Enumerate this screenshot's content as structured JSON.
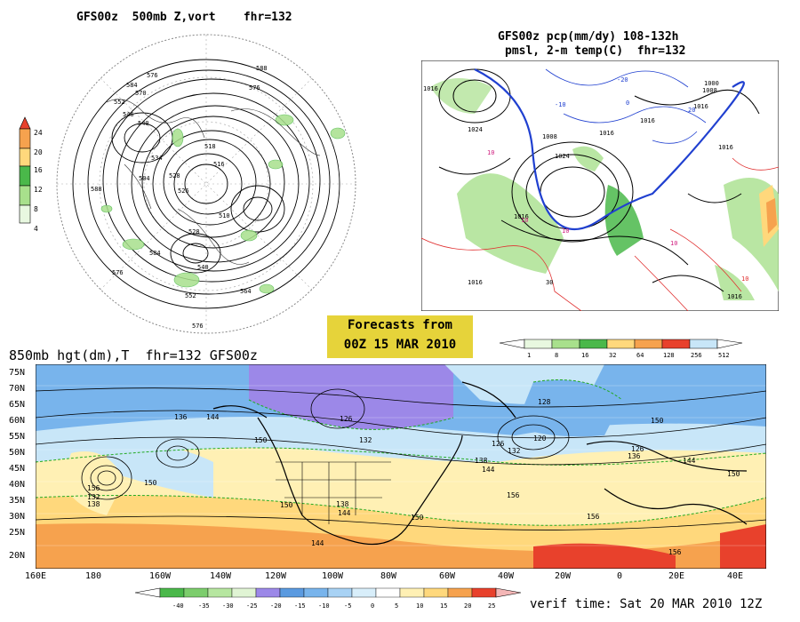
{
  "panel_500mb": {
    "title": "GFS00z  500mb Z,vort    fhr=132",
    "legend": [
      "24",
      "20",
      "16",
      "12",
      "8",
      "4"
    ],
    "contour_labels": [
      "576",
      "588",
      "584",
      "576",
      "570",
      "552",
      "540",
      "546",
      "518",
      "528",
      "534",
      "516",
      "526",
      "510",
      "504",
      "588",
      "584",
      "576",
      "528",
      "540",
      "552",
      "564",
      "576"
    ]
  },
  "panel_precip": {
    "title_line1": "GFS00z pcp(mm/dy) 108-132h",
    "title_line2": "pmsl, 2-m temp(C)  fhr=132",
    "legend": [
      "1",
      "8",
      "16",
      "32",
      "64",
      "128",
      "256",
      "512"
    ],
    "pressure_labels": [
      "1016",
      "1024",
      "1008",
      "1016",
      "1016",
      "1000",
      "1008",
      "1016",
      "1016",
      "1024",
      "1016",
      "1016",
      "1016"
    ],
    "temp_labels": [
      "10",
      "10",
      "10",
      "10",
      "20",
      "30",
      "0",
      "-10",
      "-20",
      "10"
    ]
  },
  "forecast_badge": {
    "line1": "Forecasts from",
    "line2": "00Z 15 MAR 2010"
  },
  "panel_850mb": {
    "title": "850mb hgt(dm),T  fhr=132 GFS00z",
    "lat_labels": [
      "75N",
      "70N",
      "65N",
      "60N",
      "55N",
      "50N",
      "45N",
      "40N",
      "35N",
      "30N",
      "25N",
      "20N"
    ],
    "lon_labels": [
      "160E",
      "180",
      "160W",
      "140W",
      "120W",
      "100W",
      "80W",
      "60W",
      "40W",
      "20W",
      "0",
      "20E",
      "40E"
    ],
    "height_labels": [
      "136",
      "144",
      "150",
      "126",
      "132",
      "128",
      "120",
      "126",
      "132",
      "138",
      "144",
      "150",
      "156",
      "150",
      "138",
      "144",
      "150",
      "156",
      "132",
      "138",
      "144",
      "150",
      "126",
      "136",
      "144",
      "150",
      "156",
      "156",
      "150"
    ],
    "temp_legend": [
      "-40",
      "-35",
      "-30",
      "-25",
      "-20",
      "-15",
      "-10",
      "-5",
      "0",
      "5",
      "10",
      "15",
      "20",
      "25"
    ]
  },
  "verif_time": "verif time: Sat 20 MAR 2010 12Z",
  "colors": {
    "badge": "#e6d33a",
    "lightgreen": "#a8e08c",
    "green": "#4ab84a",
    "purple": "#9c88e8",
    "blue": "#78b4ec",
    "lightblue": "#c8e6f8",
    "paleyellow": "#fff0b4",
    "yellow": "#ffd87c",
    "orange": "#f6a24e",
    "red": "#e8412c",
    "contour_blue": "#2040d0",
    "contour_red": "#e03030"
  }
}
